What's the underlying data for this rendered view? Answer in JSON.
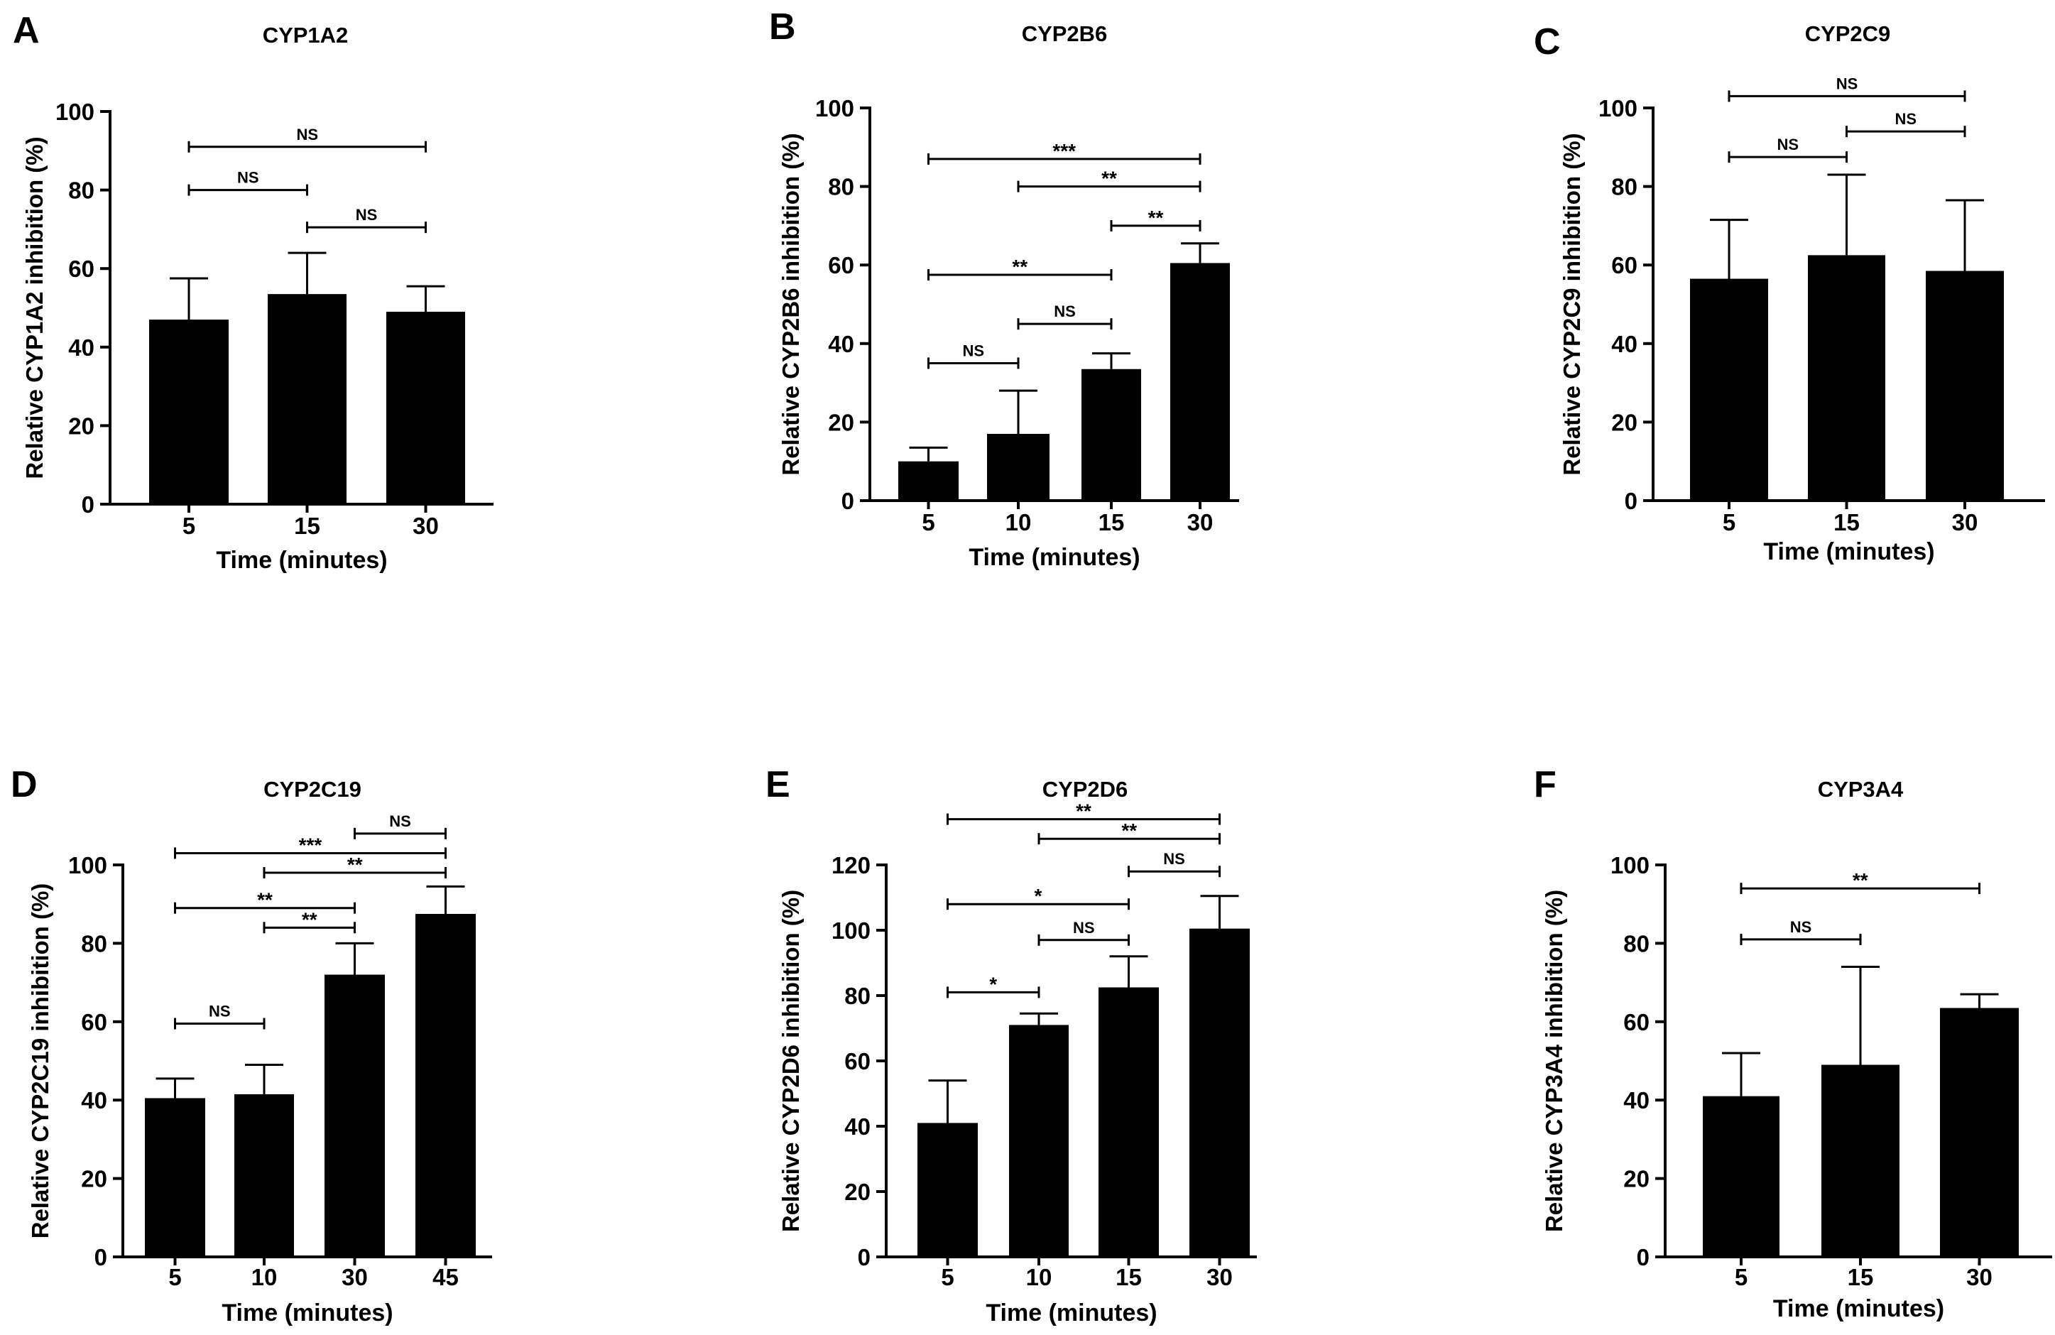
{
  "figure": {
    "bar_color": "#000000",
    "axis_color": "#000000",
    "background": "#ffffff"
  },
  "chart_data": [
    {
      "type": "bar",
      "panel_label": "A",
      "title": "CYP1A2",
      "xlabel": "Time (minutes)",
      "ylabel": "Relative CYP1A2 inhibition  (%)",
      "categories": [
        "5",
        "15",
        "30"
      ],
      "values": [
        47,
        53.5,
        49
      ],
      "errors": [
        10.5,
        10.5,
        6.5
      ],
      "ylim": [
        0,
        100
      ],
      "yticks": [
        "0",
        "20",
        "40",
        "60",
        "80",
        "100"
      ],
      "comparisons": [
        {
          "from": 0,
          "to": 2,
          "label": "NS",
          "y": 91
        },
        {
          "from": 0,
          "to": 1,
          "label": "NS",
          "y": 80
        },
        {
          "from": 1,
          "to": 2,
          "label": "NS",
          "y": 70.5
        }
      ]
    },
    {
      "type": "bar",
      "panel_label": "B",
      "title": "CYP2B6",
      "xlabel": "Time  (minutes)",
      "ylabel": "Relative CYP2B6 inhibition (%)",
      "categories": [
        "5",
        "10",
        "15",
        "30"
      ],
      "values": [
        10,
        17,
        33.5,
        60.5
      ],
      "errors": [
        3.5,
        11,
        4,
        5
      ],
      "ylim": [
        0,
        100
      ],
      "yticks": [
        "0",
        "20",
        "40",
        "60",
        "80",
        "100"
      ],
      "comparisons": [
        {
          "from": 0,
          "to": 3,
          "label": "***",
          "y": 87
        },
        {
          "from": 1,
          "to": 3,
          "label": "**",
          "y": 80
        },
        {
          "from": 2,
          "to": 3,
          "label": "**",
          "y": 70
        },
        {
          "from": 0,
          "to": 2,
          "label": "**",
          "y": 57.5
        },
        {
          "from": 1,
          "to": 2,
          "label": "NS",
          "y": 45
        },
        {
          "from": 0,
          "to": 1,
          "label": "NS",
          "y": 35
        }
      ]
    },
    {
      "type": "bar",
      "panel_label": "C",
      "title": "CYP2C9",
      "xlabel": "Time (minutes)",
      "ylabel": "Relative CYP2C9 inhibition (%)",
      "categories": [
        "5",
        "15",
        "30"
      ],
      "values": [
        56.5,
        62.5,
        58.5
      ],
      "errors": [
        15,
        20.5,
        18
      ],
      "ylim": [
        0,
        100
      ],
      "yticks": [
        "0",
        "20",
        "40",
        "60",
        "80",
        "100"
      ],
      "comparisons": [
        {
          "from": 0,
          "to": 2,
          "label": "NS",
          "y": 103
        },
        {
          "from": 1,
          "to": 2,
          "label": "NS",
          "y": 94
        },
        {
          "from": 0,
          "to": 1,
          "label": "NS",
          "y": 87.5
        }
      ]
    },
    {
      "type": "bar",
      "panel_label": "D",
      "title": "CYP2C19",
      "xlabel": "Time  (minutes)",
      "ylabel": "Relative CYP2C19 inhibition  (%)",
      "categories": [
        "5",
        "10",
        "30",
        "45"
      ],
      "values": [
        40.5,
        41.5,
        72,
        87.5
      ],
      "errors": [
        5,
        7.5,
        8,
        7
      ],
      "ylim": [
        0,
        100
      ],
      "yticks": [
        "0",
        "20",
        "40",
        "60",
        "80",
        "100"
      ],
      "comparisons": [
        {
          "from": 2,
          "to": 3,
          "label": "NS",
          "y": 108
        },
        {
          "from": 0,
          "to": 3,
          "label": "***",
          "y": 103
        },
        {
          "from": 1,
          "to": 3,
          "label": "**",
          "y": 98
        },
        {
          "from": 0,
          "to": 2,
          "label": "**",
          "y": 89
        },
        {
          "from": 1,
          "to": 2,
          "label": "**",
          "y": 84
        },
        {
          "from": 0,
          "to": 1,
          "label": "NS",
          "y": 59.5
        }
      ]
    },
    {
      "type": "bar",
      "panel_label": "E",
      "title": "CYP2D6",
      "xlabel": "Time (minutes)",
      "ylabel": "Relative CYP2D6 inhibition (%)",
      "categories": [
        "5",
        "10",
        "15",
        "30"
      ],
      "values": [
        41,
        71,
        82.5,
        100.5
      ],
      "errors": [
        13,
        3.5,
        9.5,
        10
      ],
      "ylim": [
        0,
        120
      ],
      "yticks": [
        "0",
        "20",
        "40",
        "60",
        "80",
        "100",
        "120"
      ],
      "comparisons": [
        {
          "from": 0,
          "to": 3,
          "label": "**",
          "y": 134
        },
        {
          "from": 1,
          "to": 3,
          "label": "**",
          "y": 128
        },
        {
          "from": 2,
          "to": 3,
          "label": "NS",
          "y": 118
        },
        {
          "from": 0,
          "to": 2,
          "label": "*",
          "y": 108
        },
        {
          "from": 1,
          "to": 2,
          "label": "NS",
          "y": 97
        },
        {
          "from": 0,
          "to": 1,
          "label": "*",
          "y": 81
        }
      ]
    },
    {
      "type": "bar",
      "panel_label": "F",
      "title": "CYP3A4",
      "xlabel": "Time  (minutes)",
      "ylabel": "Relative CYP3A4 inhibition (%)",
      "categories": [
        "5",
        "15",
        "30"
      ],
      "values": [
        41,
        49,
        63.5
      ],
      "errors": [
        11,
        25,
        3.5
      ],
      "ylim": [
        0,
        100
      ],
      "yticks": [
        "0",
        "20",
        "40",
        "60",
        "80",
        "100"
      ],
      "comparisons": [
        {
          "from": 0,
          "to": 2,
          "label": "**",
          "y": 94
        },
        {
          "from": 0,
          "to": 1,
          "label": "NS",
          "y": 81
        }
      ]
    }
  ]
}
